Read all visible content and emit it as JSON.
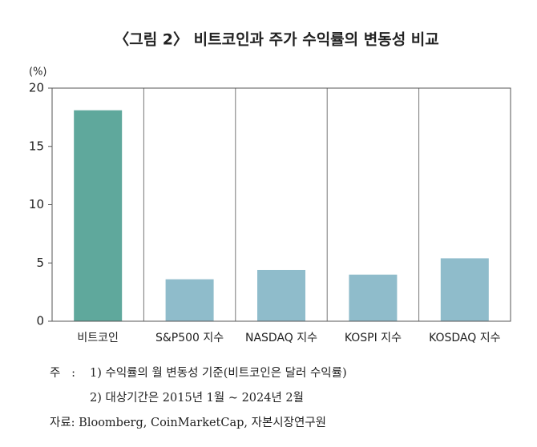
{
  "chart_data": {
    "type": "bar",
    "title": "〈그림 2〉 비트코인과 주가 수익률의 변동성 비교",
    "y_unit": "(%)",
    "categories": [
      "비트코인",
      "S&P500 지수",
      "NASDAQ 지수",
      "KOSPI 지수",
      "KOSDAQ 지수"
    ],
    "values": [
      18.1,
      3.6,
      4.4,
      4.0,
      5.4
    ],
    "colors": [
      "#5fa89c",
      "#8fbccb",
      "#8fbccb",
      "#8fbccb",
      "#8fbccb"
    ],
    "ylim": [
      0,
      20
    ],
    "yticks": [
      0,
      5,
      10,
      15,
      20
    ],
    "note_prefix": "주   :",
    "notes": [
      "1) 수익률의 월 변동성 기준(비트코인은 달러 수익률)",
      "2) 대상기간은 2015년 1월 ~ 2024년 2월"
    ],
    "source": "자료: Bloomberg, CoinMarketCap, 자본시장연구원"
  }
}
